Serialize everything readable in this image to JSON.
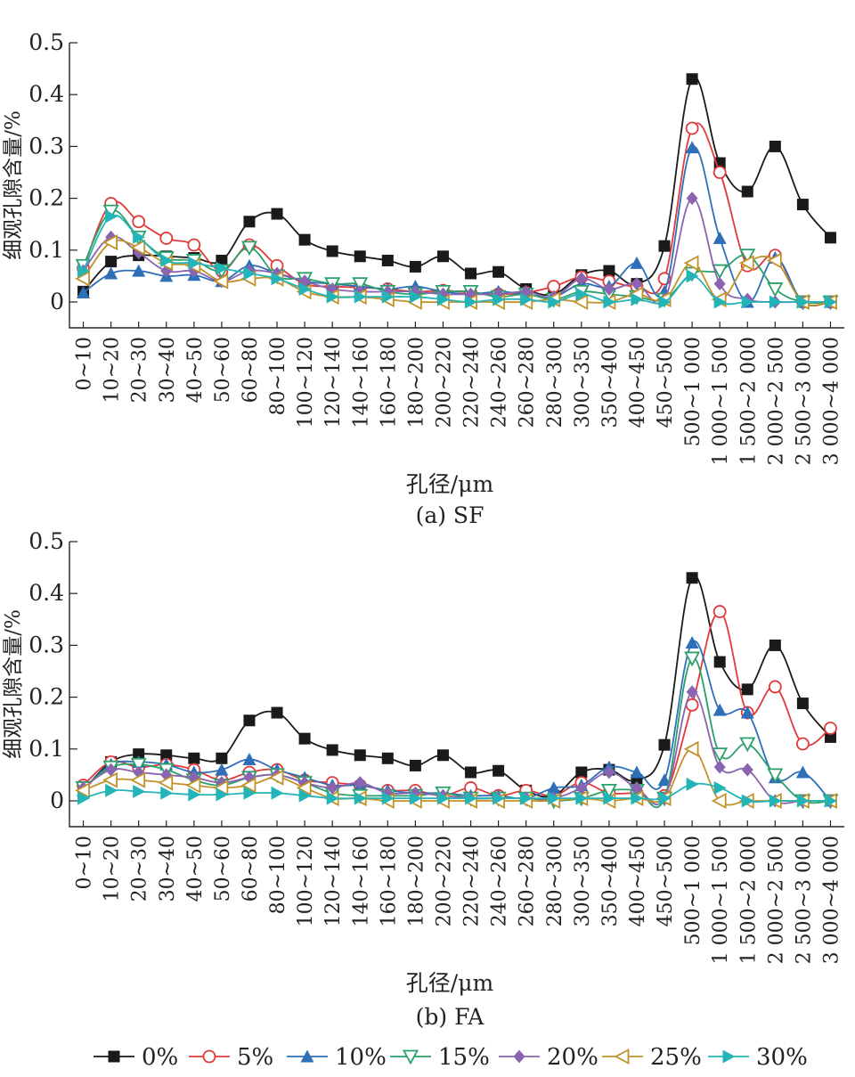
{
  "series_styles": [
    {
      "name": "0%",
      "color": "#1a1a1a",
      "marker": "square"
    },
    {
      "name": "5%",
      "color": "#e03a3a",
      "marker": "circle-open"
    },
    {
      "name": "10%",
      "color": "#2e6fb8",
      "marker": "triangle-up"
    },
    {
      "name": "15%",
      "color": "#2aa06a",
      "marker": "triangle-down-open"
    },
    {
      "name": "20%",
      "color": "#8a64b0",
      "marker": "diamond"
    },
    {
      "name": "25%",
      "color": "#c2922a",
      "marker": "triangle-left-open"
    },
    {
      "name": "30%",
      "color": "#23b4b8",
      "marker": "triangle-right"
    }
  ],
  "legend": [
    "0%",
    "5%",
    "10%",
    "15%",
    "20%",
    "25%",
    "30%"
  ],
  "chart_data": [
    {
      "type": "line",
      "caption": "(a) SF",
      "xlabel": "孔径/μm",
      "ylabel": "细观孔隙含量/%",
      "ylim": [
        0,
        0.5
      ],
      "yticks": [
        "0",
        "0.1",
        "0.2",
        "0.3",
        "0.4",
        "0.5"
      ],
      "categories": [
        "0~10",
        "10~20",
        "20~30",
        "30~40",
        "40~50",
        "50~60",
        "60~80",
        "80~100",
        "100~120",
        "120~140",
        "140~160",
        "160~180",
        "180~200",
        "200~220",
        "220~240",
        "240~260",
        "260~280",
        "280~300",
        "300~350",
        "350~400",
        "400~450",
        "450~500",
        "500~1 000",
        "1 000~1 500",
        "1 500~2 000",
        "2 000~2 500",
        "2 500~3 000",
        "3 000~4 000"
      ],
      "series": [
        {
          "name": "0%",
          "values": [
            0.02,
            0.078,
            0.09,
            0.088,
            0.085,
            0.08,
            0.155,
            0.17,
            0.12,
            0.098,
            0.088,
            0.08,
            0.068,
            0.088,
            0.055,
            0.058,
            0.025,
            0.015,
            0.052,
            0.06,
            0.035,
            0.108,
            0.43,
            0.268,
            0.213,
            0.3,
            0.188,
            0.124
          ]
        },
        {
          "name": "5%",
          "values": [
            0.065,
            0.19,
            0.155,
            0.123,
            0.11,
            0.06,
            0.11,
            0.07,
            0.035,
            0.03,
            0.028,
            0.025,
            0.02,
            0.022,
            0.018,
            0.015,
            0.018,
            0.03,
            0.048,
            0.04,
            0.03,
            0.045,
            0.335,
            0.25,
            0.07,
            0.09,
            0.0,
            0.0
          ]
        },
        {
          "name": "10%",
          "values": [
            0.018,
            0.055,
            0.06,
            0.05,
            0.052,
            0.04,
            0.07,
            0.055,
            0.04,
            0.035,
            0.03,
            0.025,
            0.03,
            0.02,
            0.015,
            0.02,
            0.015,
            0.01,
            0.035,
            0.03,
            0.075,
            0.02,
            0.298,
            0.123,
            0.0,
            0.085,
            0.0,
            0.0
          ]
        },
        {
          "name": "15%",
          "values": [
            0.07,
            0.175,
            0.125,
            0.085,
            0.08,
            0.06,
            0.105,
            0.05,
            0.045,
            0.035,
            0.035,
            0.02,
            0.015,
            0.02,
            0.02,
            0.01,
            0.015,
            0.005,
            0.02,
            0.015,
            0.01,
            0.005,
            0.055,
            0.06,
            0.09,
            0.025,
            0.0,
            0.0
          ]
        },
        {
          "name": "20%",
          "values": [
            0.06,
            0.125,
            0.095,
            0.06,
            0.06,
            0.04,
            0.06,
            0.055,
            0.04,
            0.025,
            0.02,
            0.02,
            0.02,
            0.015,
            0.015,
            0.015,
            0.02,
            0.01,
            0.045,
            0.025,
            0.035,
            0.005,
            0.2,
            0.035,
            0.005,
            0.0,
            0.0,
            0.0
          ]
        },
        {
          "name": "25%",
          "values": [
            0.045,
            0.115,
            0.105,
            0.075,
            0.07,
            0.04,
            0.045,
            0.045,
            0.02,
            0.01,
            0.01,
            0.005,
            0.0,
            0.0,
            0.0,
            0.0,
            0.0,
            0.005,
            0.0,
            0.0,
            0.015,
            0.005,
            0.075,
            0.005,
            0.075,
            0.08,
            0.0,
            0.0
          ]
        },
        {
          "name": "30%",
          "values": [
            0.06,
            0.165,
            0.125,
            0.08,
            0.075,
            0.065,
            0.055,
            0.045,
            0.025,
            0.01,
            0.01,
            0.01,
            0.01,
            0.005,
            0.0,
            0.005,
            0.005,
            0.0,
            0.015,
            0.0,
            0.005,
            0.0,
            0.05,
            0.0,
            0.0,
            0.0,
            0.0,
            0.0
          ]
        }
      ]
    },
    {
      "type": "line",
      "caption": "(b) FA",
      "xlabel": "孔径/μm",
      "ylabel": "细观孔隙含量/%",
      "ylim": [
        0,
        0.5
      ],
      "yticks": [
        "0",
        "0.1",
        "0.2",
        "0.3",
        "0.4",
        "0.5"
      ],
      "categories": [
        "0~10",
        "10~20",
        "20~30",
        "30~40",
        "40~50",
        "50~60",
        "60~80",
        "80~100",
        "100~120",
        "120~140",
        "140~160",
        "160~180",
        "180~200",
        "200~220",
        "220~240",
        "240~260",
        "260~280",
        "280~300",
        "300~350",
        "350~400",
        "400~450",
        "450~500",
        "500~1 000",
        "1 000~1 500",
        "1 500~2 000",
        "2 000~2 500",
        "2 500~3 000",
        "3 000~4 000"
      ],
      "series": [
        {
          "name": "0%",
          "values": [
            0.02,
            0.075,
            0.09,
            0.088,
            0.082,
            0.082,
            0.155,
            0.17,
            0.12,
            0.098,
            0.088,
            0.082,
            0.068,
            0.088,
            0.055,
            0.058,
            0.02,
            0.01,
            0.055,
            0.06,
            0.04,
            0.108,
            0.43,
            0.268,
            0.215,
            0.3,
            0.188,
            0.123
          ]
        },
        {
          "name": "5%",
          "values": [
            0.03,
            0.075,
            0.065,
            0.07,
            0.06,
            0.04,
            0.055,
            0.06,
            0.04,
            0.035,
            0.03,
            0.02,
            0.02,
            0.01,
            0.025,
            0.01,
            0.02,
            0.01,
            0.035,
            0.015,
            0.015,
            0.01,
            0.185,
            0.365,
            0.17,
            0.22,
            0.11,
            0.14
          ]
        },
        {
          "name": "10%",
          "values": [
            0.02,
            0.07,
            0.075,
            0.07,
            0.055,
            0.06,
            0.08,
            0.06,
            0.045,
            0.03,
            0.03,
            0.02,
            0.015,
            0.015,
            0.01,
            0.01,
            0.005,
            0.025,
            0.03,
            0.065,
            0.055,
            0.04,
            0.305,
            0.175,
            0.17,
            0.045,
            0.055,
            0.0
          ]
        },
        {
          "name": "15%",
          "values": [
            0.025,
            0.065,
            0.07,
            0.06,
            0.04,
            0.03,
            0.045,
            0.05,
            0.035,
            0.015,
            0.01,
            0.01,
            0.01,
            0.015,
            0.005,
            0.005,
            0.005,
            0.0,
            0.005,
            0.02,
            0.02,
            0.005,
            0.275,
            0.09,
            0.11,
            0.05,
            0.0,
            0.0
          ]
        },
        {
          "name": "20%",
          "values": [
            0.025,
            0.06,
            0.055,
            0.05,
            0.045,
            0.035,
            0.045,
            0.05,
            0.035,
            0.025,
            0.035,
            0.015,
            0.015,
            0.01,
            0.005,
            0.005,
            0.005,
            0.005,
            0.025,
            0.055,
            0.025,
            0.005,
            0.21,
            0.065,
            0.06,
            0.0,
            0.0,
            0.0
          ]
        },
        {
          "name": "25%",
          "values": [
            0.02,
            0.04,
            0.04,
            0.035,
            0.03,
            0.025,
            0.03,
            0.045,
            0.025,
            0.005,
            0.005,
            0.0,
            0.0,
            0.0,
            0.0,
            0.0,
            0.0,
            0.0,
            0.005,
            0.0,
            0.005,
            0.005,
            0.1,
            0.0,
            0.0,
            0.0,
            0.0,
            0.0
          ]
        },
        {
          "name": "30%",
          "values": [
            0.005,
            0.02,
            0.018,
            0.015,
            0.012,
            0.012,
            0.015,
            0.015,
            0.01,
            0.005,
            0.005,
            0.005,
            0.005,
            0.005,
            0.005,
            0.005,
            0.005,
            0.005,
            0.005,
            0.005,
            0.005,
            0.005,
            0.032,
            0.025,
            0.0,
            0.0,
            0.0,
            0.0
          ]
        }
      ]
    }
  ]
}
